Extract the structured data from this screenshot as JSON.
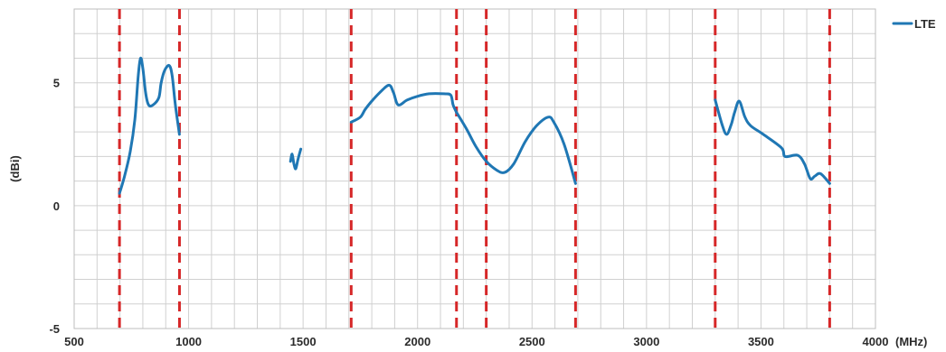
{
  "chart_data": {
    "type": "line",
    "xlabel": "(MHz)",
    "ylabel": "(dBi)",
    "xlim": [
      500,
      4000
    ],
    "ylim": [
      -5,
      8
    ],
    "x_ticks": [
      500,
      1000,
      1500,
      2000,
      2500,
      3000,
      3500,
      4000
    ],
    "y_ticks": [
      -5,
      0,
      5
    ],
    "grid": true,
    "legend_position": "top-right",
    "band_markers_mhz": [
      698,
      960,
      1710,
      2170,
      2300,
      2690,
      3300,
      3800
    ],
    "colors": {
      "series": "#1f77b4",
      "markers": "#d62728",
      "grid": "#d0d0d0"
    },
    "series": [
      {
        "name": "LTE",
        "segments": [
          [
            [
              698,
              0.5
            ],
            [
              720,
              1.2
            ],
            [
              745,
              2.2
            ],
            [
              765,
              3.5
            ],
            [
              780,
              5.3
            ],
            [
              790,
              6.0
            ],
            [
              800,
              5.6
            ],
            [
              812,
              4.6
            ],
            [
              825,
              4.1
            ],
            [
              845,
              4.1
            ],
            [
              870,
              4.4
            ],
            [
              880,
              5.0
            ],
            [
              895,
              5.5
            ],
            [
              915,
              5.7
            ],
            [
              928,
              5.3
            ],
            [
              942,
              4.1
            ],
            [
              960,
              2.9
            ]
          ],
          [
            [
              1445,
              1.8
            ],
            [
              1452,
              2.1
            ],
            [
              1460,
              1.7
            ],
            [
              1468,
              1.5
            ],
            [
              1478,
              1.9
            ],
            [
              1490,
              2.3
            ]
          ],
          [
            [
              1710,
              3.4
            ],
            [
              1750,
              3.6
            ],
            [
              1770,
              3.9
            ],
            [
              1795,
              4.2
            ],
            [
              1835,
              4.6
            ],
            [
              1875,
              4.9
            ],
            [
              1895,
              4.6
            ],
            [
              1915,
              4.1
            ],
            [
              1955,
              4.3
            ],
            [
              2000,
              4.45
            ],
            [
              2050,
              4.55
            ],
            [
              2115,
              4.55
            ],
            [
              2145,
              4.5
            ],
            [
              2155,
              4.1
            ],
            [
              2170,
              3.8
            ]
          ],
          [
            [
              2170,
              3.8
            ],
            [
              2215,
              3.1
            ],
            [
              2255,
              2.4
            ],
            [
              2300,
              1.8
            ],
            [
              2345,
              1.45
            ],
            [
              2380,
              1.35
            ],
            [
              2420,
              1.7
            ],
            [
              2470,
              2.6
            ],
            [
              2520,
              3.25
            ],
            [
              2570,
              3.6
            ],
            [
              2595,
              3.4
            ],
            [
              2640,
              2.5
            ],
            [
              2690,
              0.9
            ]
          ],
          [
            [
              3300,
              4.3
            ],
            [
              3330,
              3.3
            ],
            [
              3350,
              2.9
            ],
            [
              3370,
              3.3
            ],
            [
              3385,
              3.8
            ],
            [
              3405,
              4.25
            ],
            [
              3430,
              3.6
            ],
            [
              3455,
              3.25
            ],
            [
              3510,
              2.9
            ],
            [
              3590,
              2.35
            ],
            [
              3605,
              2.0
            ],
            [
              3660,
              2.05
            ],
            [
              3690,
              1.7
            ],
            [
              3715,
              1.1
            ],
            [
              3735,
              1.2
            ],
            [
              3760,
              1.3
            ],
            [
              3800,
              0.9
            ]
          ]
        ]
      }
    ]
  }
}
